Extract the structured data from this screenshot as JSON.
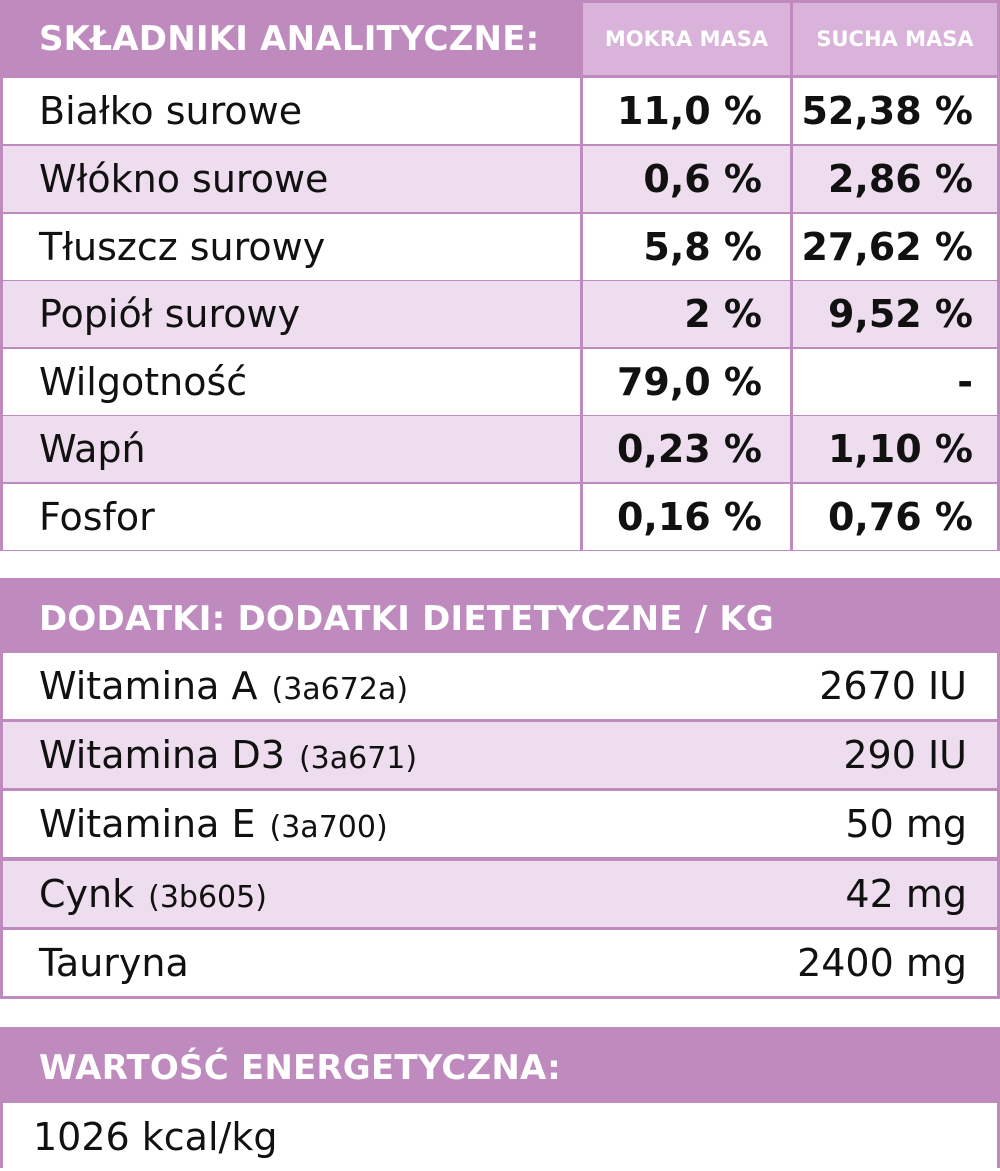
{
  "analytic": {
    "title": "SKŁADNIKI ANALITYCZNE:",
    "col_wet": "MOKRA MASA",
    "col_dry": "SUCHA MASA",
    "rows": [
      {
        "name": "Białko surowe",
        "wet": "11,0 %",
        "dry": "52,38 %"
      },
      {
        "name": "Włókno surowe",
        "wet": "0,6 %",
        "dry": "2,86 %"
      },
      {
        "name": "Tłuszcz surowy",
        "wet": "5,8 %",
        "dry": "27,62 %"
      },
      {
        "name": "Popiół surowy",
        "wet": "2 %",
        "dry": "9,52 %"
      },
      {
        "name": "Wilgotność",
        "wet": "79,0 %",
        "dry": "-"
      },
      {
        "name": "Wapń",
        "wet": "0,23 %",
        "dry": "1,10 %"
      },
      {
        "name": "Fosfor",
        "wet": "0,16 %",
        "dry": "0,76 %"
      }
    ]
  },
  "additives": {
    "title": "DODATKI: DODATKI DIETETYCZNE / KG",
    "rows": [
      {
        "name": "Witamina A",
        "code": "(3a672a)",
        "value": "2670 IU"
      },
      {
        "name": "Witamina D3",
        "code": "(3a671)",
        "value": "290 IU"
      },
      {
        "name": "Witamina E",
        "code": "(3a700)",
        "value": "50 mg"
      },
      {
        "name": "Cynk",
        "code": "(3b605)",
        "value": "42 mg"
      },
      {
        "name": "Tauryna",
        "code": "",
        "value": "2400 mg"
      }
    ]
  },
  "energy": {
    "title": "WARTOŚĆ ENERGETYCZNA:",
    "value": "1026 kcal/kg"
  },
  "colors": {
    "header": "#bf8bbf",
    "header_light": "#d9b3d9",
    "row_alt": "#eeddee",
    "row": "#ffffff",
    "text": "#111111"
  }
}
